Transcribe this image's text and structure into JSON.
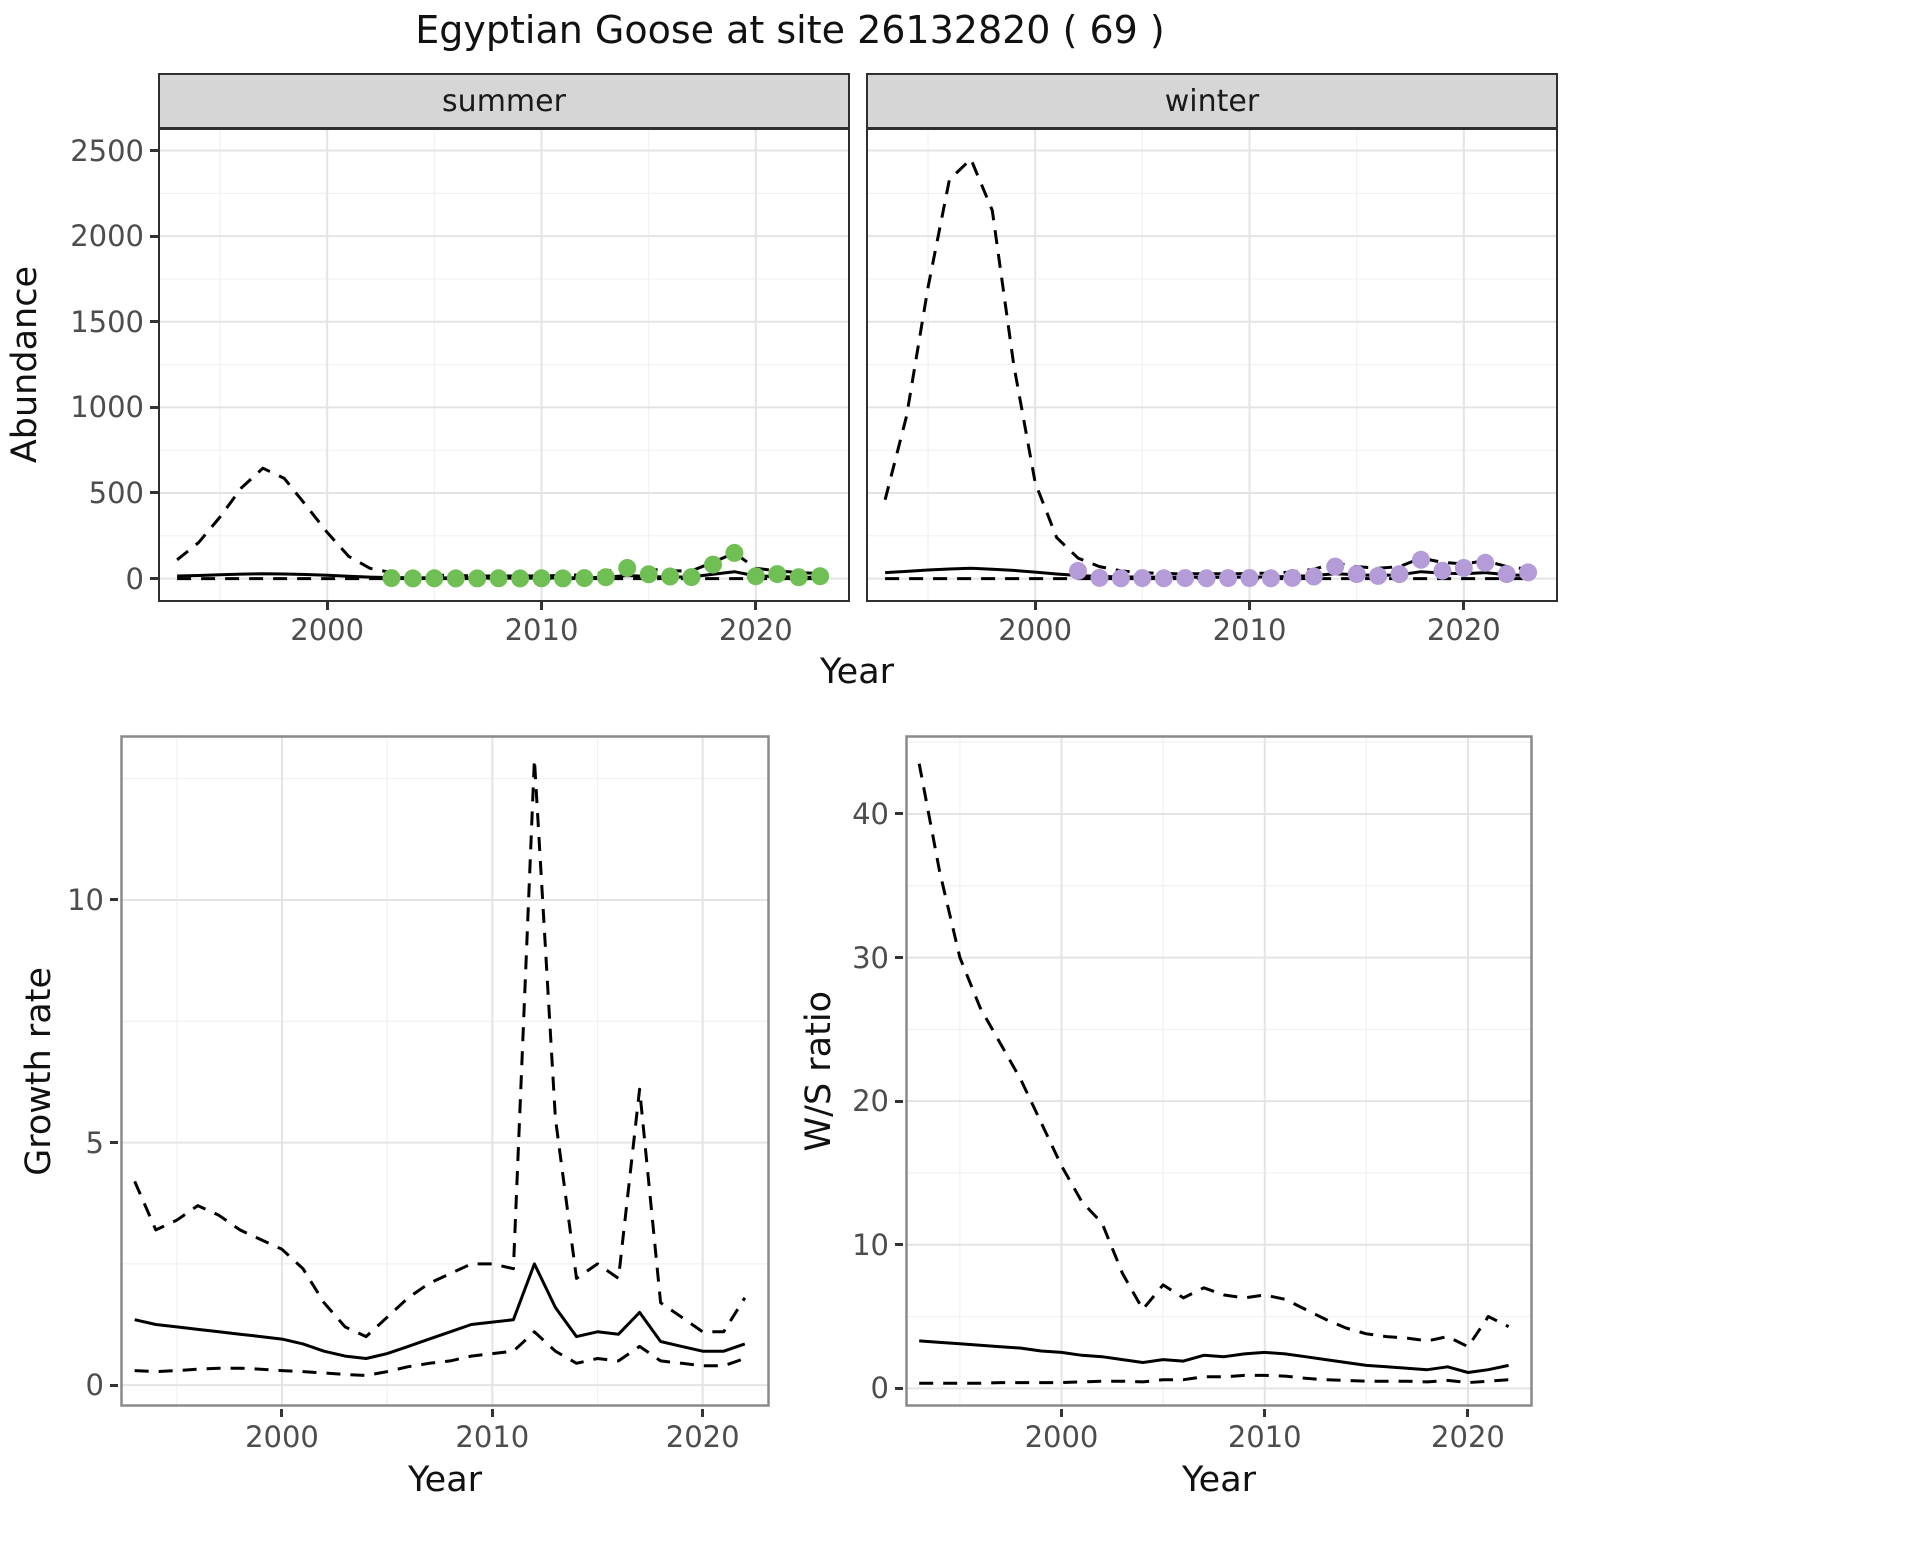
{
  "title": "Egyptian Goose at site 26132820 ( 69 )",
  "colors": {
    "line": "#000000",
    "summer_point": "#6fbf54",
    "winter_point": "#b49cd8",
    "strip_bg": "#d6d6d6",
    "grid_major": "#e4e4e4",
    "grid_minor": "#f1f1f1",
    "axis_text": "#4d4d4d",
    "panel_border": "#8a8a8a"
  },
  "chart_data": [
    {
      "id": "abundance-summer",
      "type": "line",
      "facet_label": "summer",
      "xlabel": "Year",
      "ylabel": "Abundance",
      "xlim": [
        1992.2,
        2024.3
      ],
      "ylim": [
        -125,
        2620
      ],
      "xticks": [
        2000,
        2010,
        2020
      ],
      "yticks": [
        0,
        500,
        1000,
        1500,
        2000,
        2500
      ],
      "grid": "on",
      "legend": "none",
      "x": [
        1993,
        1994,
        1995,
        1996,
        1997,
        1998,
        1999,
        2000,
        2001,
        2002,
        2003,
        2004,
        2005,
        2006,
        2007,
        2008,
        2009,
        2010,
        2011,
        2012,
        2013,
        2014,
        2015,
        2016,
        2017,
        2018,
        2019,
        2020,
        2021,
        2022,
        2023
      ],
      "series": [
        {
          "name": "upper-ci",
          "style": "dashed",
          "values": [
            110,
            210,
            360,
            530,
            645,
            585,
            430,
            270,
            130,
            60,
            35,
            25,
            20,
            18,
            16,
            15,
            15,
            16,
            18,
            22,
            35,
            85,
            55,
            45,
            45,
            95,
            150,
            60,
            45,
            35,
            30
          ]
        },
        {
          "name": "mean",
          "style": "solid",
          "values": [
            15,
            18,
            22,
            26,
            28,
            27,
            24,
            20,
            14,
            9,
            6,
            5,
            4,
            4,
            3,
            3,
            3,
            3,
            4,
            5,
            8,
            18,
            12,
            9,
            10,
            25,
            40,
            15,
            12,
            9,
            8
          ]
        },
        {
          "name": "lower-ci",
          "style": "dashed",
          "values": [
            0,
            0,
            0,
            0,
            0,
            0,
            0,
            0,
            0,
            0,
            0,
            0,
            0,
            0,
            0,
            0,
            0,
            0,
            0,
            0,
            0,
            0,
            0,
            0,
            0,
            0,
            0,
            0,
            0,
            0,
            0
          ]
        }
      ],
      "points": {
        "name": "summer-observed",
        "color": "#6fbf54",
        "x": [
          2003,
          2004,
          2005,
          2006,
          2007,
          2008,
          2009,
          2010,
          2011,
          2012,
          2013,
          2014,
          2015,
          2016,
          2017,
          2018,
          2019,
          2020,
          2021,
          2022,
          2023
        ],
        "y": [
          3,
          1,
          2,
          1,
          1,
          2,
          1,
          2,
          1,
          3,
          8,
          62,
          25,
          12,
          9,
          82,
          150,
          14,
          26,
          8,
          14
        ]
      }
    },
    {
      "id": "abundance-winter",
      "type": "line",
      "facet_label": "winter",
      "xlabel": "Year",
      "ylabel": "Abundance",
      "xlim": [
        1992.2,
        2024.3
      ],
      "ylim": [
        -125,
        2620
      ],
      "xticks": [
        2000,
        2010,
        2020
      ],
      "yticks": [
        0,
        500,
        1000,
        1500,
        2000,
        2500
      ],
      "grid": "on",
      "legend": "none",
      "x": [
        1993,
        1994,
        1995,
        1996,
        1997,
        1998,
        1999,
        2000,
        2001,
        2002,
        2003,
        2004,
        2005,
        2006,
        2007,
        2008,
        2009,
        2010,
        2011,
        2012,
        2013,
        2014,
        2015,
        2016,
        2017,
        2018,
        2019,
        2020,
        2021,
        2022,
        2023
      ],
      "series": [
        {
          "name": "upper-ci",
          "style": "dashed",
          "values": [
            460,
            950,
            1700,
            2330,
            2450,
            2150,
            1250,
            560,
            240,
            120,
            70,
            45,
            35,
            30,
            28,
            28,
            28,
            30,
            32,
            38,
            55,
            90,
            70,
            60,
            70,
            120,
            95,
            85,
            105,
            70,
            55
          ]
        },
        {
          "name": "mean",
          "style": "solid",
          "values": [
            35,
            42,
            50,
            56,
            60,
            55,
            48,
            38,
            27,
            18,
            12,
            10,
            9,
            8,
            8,
            8,
            8,
            9,
            10,
            12,
            18,
            28,
            22,
            18,
            22,
            40,
            32,
            28,
            35,
            22,
            18
          ]
        },
        {
          "name": "lower-ci",
          "style": "dashed",
          "values": [
            0,
            0,
            0,
            0,
            0,
            0,
            0,
            0,
            0,
            0,
            0,
            0,
            0,
            0,
            0,
            0,
            0,
            0,
            0,
            0,
            0,
            0,
            0,
            0,
            0,
            0,
            0,
            0,
            0,
            0,
            0
          ]
        }
      ],
      "points": {
        "name": "winter-observed",
        "color": "#b49cd8",
        "x": [
          2002,
          2003,
          2004,
          2005,
          2006,
          2007,
          2008,
          2009,
          2010,
          2011,
          2012,
          2013,
          2014,
          2015,
          2016,
          2017,
          2018,
          2019,
          2020,
          2021,
          2022,
          2023
        ],
        "y": [
          45,
          4,
          2,
          3,
          2,
          3,
          2,
          3,
          3,
          2,
          4,
          12,
          70,
          26,
          16,
          26,
          110,
          46,
          62,
          92,
          26,
          36
        ]
      }
    },
    {
      "id": "growth-rate",
      "type": "line",
      "facet_label": "",
      "xlabel": "Year",
      "ylabel": "Growth rate",
      "xlim": [
        1992.3,
        2023.2
      ],
      "ylim": [
        -0.45,
        13.4
      ],
      "xticks": [
        2000,
        2010,
        2020
      ],
      "yticks": [
        0,
        5,
        10
      ],
      "grid": "on",
      "legend": "none",
      "x": [
        1993,
        1994,
        1995,
        1996,
        1997,
        1998,
        1999,
        2000,
        2001,
        2002,
        2003,
        2004,
        2005,
        2006,
        2007,
        2008,
        2009,
        2010,
        2011,
        2012,
        2013,
        2014,
        2015,
        2016,
        2017,
        2018,
        2019,
        2020,
        2021,
        2022
      ],
      "series": [
        {
          "name": "upper-ci",
          "style": "dashed",
          "values": [
            4.2,
            3.2,
            3.4,
            3.7,
            3.5,
            3.2,
            3.0,
            2.8,
            2.4,
            1.7,
            1.2,
            1.0,
            1.4,
            1.8,
            2.1,
            2.3,
            2.5,
            2.5,
            2.4,
            12.9,
            5.5,
            2.2,
            2.5,
            2.2,
            6.1,
            1.7,
            1.4,
            1.1,
            1.1,
            1.8
          ]
        },
        {
          "name": "mean",
          "style": "solid",
          "values": [
            1.35,
            1.25,
            1.2,
            1.15,
            1.1,
            1.05,
            1.0,
            0.95,
            0.85,
            0.7,
            0.6,
            0.55,
            0.65,
            0.8,
            0.95,
            1.1,
            1.25,
            1.3,
            1.35,
            2.5,
            1.6,
            1.0,
            1.1,
            1.05,
            1.5,
            0.9,
            0.8,
            0.7,
            0.7,
            0.85
          ]
        },
        {
          "name": "lower-ci",
          "style": "dashed",
          "values": [
            0.3,
            0.28,
            0.3,
            0.33,
            0.35,
            0.35,
            0.33,
            0.3,
            0.28,
            0.25,
            0.22,
            0.2,
            0.28,
            0.38,
            0.45,
            0.5,
            0.6,
            0.65,
            0.7,
            1.1,
            0.7,
            0.45,
            0.55,
            0.5,
            0.8,
            0.5,
            0.45,
            0.4,
            0.4,
            0.55
          ]
        }
      ]
    },
    {
      "id": "ws-ratio",
      "type": "line",
      "facet_label": "",
      "xlabel": "Year",
      "ylabel": "W/S ratio",
      "xlim": [
        1992.3,
        2023.2
      ],
      "ylim": [
        -1.3,
        45.5
      ],
      "xticks": [
        2000,
        2010,
        2020
      ],
      "yticks": [
        0,
        10,
        20,
        30,
        40
      ],
      "grid": "on",
      "legend": "none",
      "x": [
        1993,
        1994,
        1995,
        1996,
        1997,
        1998,
        1999,
        2000,
        2001,
        2002,
        2003,
        2004,
        2005,
        2006,
        2007,
        2008,
        2009,
        2010,
        2011,
        2012,
        2013,
        2014,
        2015,
        2016,
        2017,
        2018,
        2019,
        2020,
        2021,
        2022
      ],
      "series": [
        {
          "name": "upper-ci",
          "style": "dashed",
          "values": [
            43.5,
            36,
            30,
            26.5,
            24,
            21.5,
            18.5,
            15.5,
            13,
            11.5,
            8,
            5.5,
            7.2,
            6.3,
            7,
            6.5,
            6.3,
            6.5,
            6.2,
            5.5,
            4.8,
            4.2,
            3.8,
            3.6,
            3.5,
            3.3,
            3.6,
            2.9,
            5,
            4.3
          ]
        },
        {
          "name": "mean",
          "style": "solid",
          "values": [
            3.3,
            3.2,
            3.1,
            3.0,
            2.9,
            2.8,
            2.6,
            2.5,
            2.3,
            2.2,
            2.0,
            1.8,
            2.0,
            1.9,
            2.3,
            2.2,
            2.4,
            2.5,
            2.4,
            2.2,
            2.0,
            1.8,
            1.6,
            1.5,
            1.4,
            1.3,
            1.5,
            1.1,
            1.3,
            1.6
          ]
        },
        {
          "name": "lower-ci",
          "style": "dashed",
          "values": [
            0.35,
            0.35,
            0.35,
            0.35,
            0.4,
            0.4,
            0.4,
            0.4,
            0.45,
            0.5,
            0.5,
            0.45,
            0.6,
            0.6,
            0.8,
            0.8,
            0.9,
            0.9,
            0.85,
            0.7,
            0.6,
            0.55,
            0.5,
            0.5,
            0.5,
            0.45,
            0.55,
            0.4,
            0.5,
            0.6
          ]
        }
      ]
    }
  ]
}
